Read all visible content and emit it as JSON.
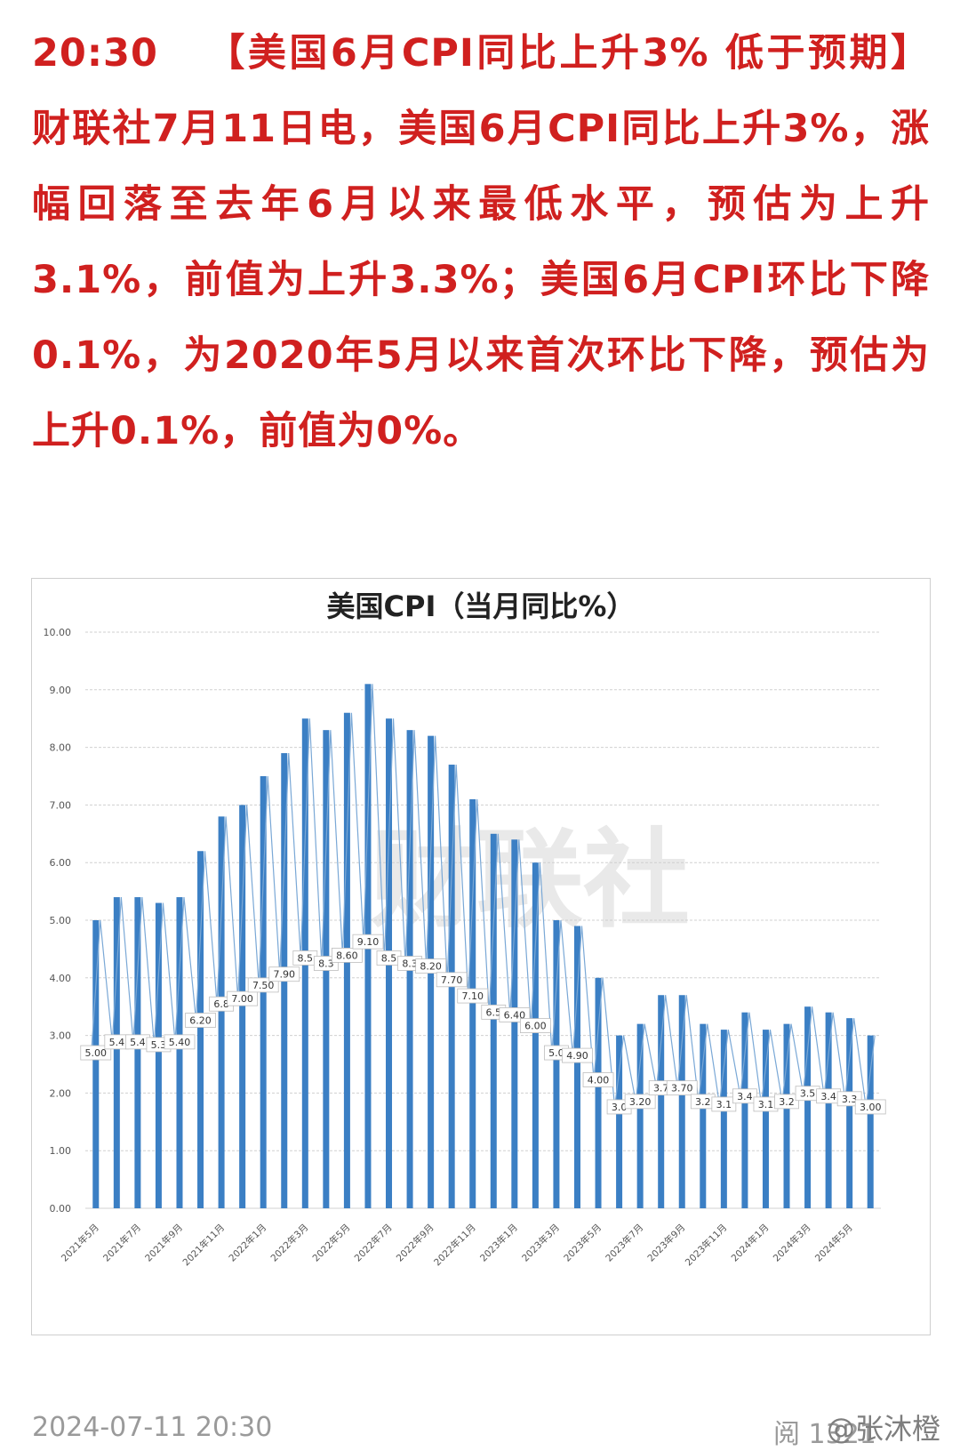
{
  "news": {
    "time": "20:30",
    "body": "【美国6月CPI同比上升3% 低于预期】财联社7月11日电，美国6月CPI同比上升3%，涨幅回落至去年6月以来最低水平，预估为上升3.1%，前值为上升3.3%；美国6月CPI环比下降0.1%，为2020年5月以来首次环比下降，预估为上升0.1%，前值为0%。"
  },
  "chart_data": {
    "type": "bar",
    "title": "美国CPI（当月同比%）",
    "xlabel": "",
    "ylabel": "",
    "ylim": [
      0,
      10
    ],
    "yticks": [
      "0.00",
      "1.00",
      "2.00",
      "3.00",
      "4.00",
      "5.00",
      "6.00",
      "7.00",
      "8.00",
      "9.00",
      "10.00"
    ],
    "grid": true,
    "categories": [
      "2021年5月",
      "2021年6月",
      "2021年7月",
      "2021年8月",
      "2021年9月",
      "2021年10月",
      "2021年11月",
      "2021年12月",
      "2022年1月",
      "2022年2月",
      "2022年3月",
      "2022年4月",
      "2022年5月",
      "2022年6月",
      "2022年7月",
      "2022年8月",
      "2022年9月",
      "2022年10月",
      "2022年11月",
      "2022年12月",
      "2023年1月",
      "2023年2月",
      "2023年3月",
      "2023年4月",
      "2023年5月",
      "2023年6月",
      "2023年7月",
      "2023年8月",
      "2023年9月",
      "2023年10月",
      "2023年11月",
      "2023年12月",
      "2024年1月",
      "2024年2月",
      "2024年3月",
      "2024年4月",
      "2024年5月",
      "2024年6月"
    ],
    "xtick_labels": [
      "2021年5月",
      "",
      "2021年7月",
      "",
      "2021年9月",
      "",
      "2021年11月",
      "",
      "2022年1月",
      "",
      "2022年3月",
      "",
      "2022年5月",
      "",
      "2022年7月",
      "",
      "2022年9月",
      "",
      "2022年11月",
      "",
      "2023年1月",
      "",
      "2023年3月",
      "",
      "2023年5月",
      "",
      "2023年7月",
      "",
      "2023年9月",
      "",
      "2023年11月",
      "",
      "2024年1月",
      "",
      "2024年3月",
      "",
      "2024年5月",
      ""
    ],
    "values": [
      5.0,
      5.4,
      5.4,
      5.3,
      5.4,
      6.2,
      6.8,
      7.0,
      7.5,
      7.9,
      8.5,
      8.3,
      8.6,
      9.1,
      8.5,
      8.3,
      8.2,
      7.7,
      7.1,
      6.5,
      6.4,
      6.0,
      5.0,
      4.9,
      4.0,
      3.0,
      3.2,
      3.7,
      3.7,
      3.2,
      3.1,
      3.4,
      3.1,
      3.2,
      3.5,
      3.4,
      3.3,
      3.0
    ],
    "data_labels": [
      "5.00",
      "5.4",
      "5.4",
      "5.3",
      "5.40",
      "6.20",
      "6.8",
      "7.00",
      "7.50",
      "7.90",
      "8.5",
      "8.3",
      "8.60",
      "9.10",
      "8.5",
      "8.3",
      "8.20",
      "7.70",
      "7.10",
      "6.5",
      "6.40",
      "6.00",
      "5.0",
      "4.90",
      "4.00",
      "3.0",
      "3.20",
      "3.7",
      "3.70",
      "3.2",
      "3.1",
      "3.4",
      "3.1",
      "3.2",
      "3.5",
      "3.4",
      "3.3",
      "3.00"
    ],
    "bar_color": "#3b7fc4",
    "line_color": "#7aa8d6",
    "grid_color": "#d0d0d0"
  },
  "watermark": {
    "chart_text": "财联社",
    "corner_text": "@张沐橙"
  },
  "footer": {
    "timestamp": "2024-07-11 20:30",
    "read_label": "阅 1321"
  }
}
